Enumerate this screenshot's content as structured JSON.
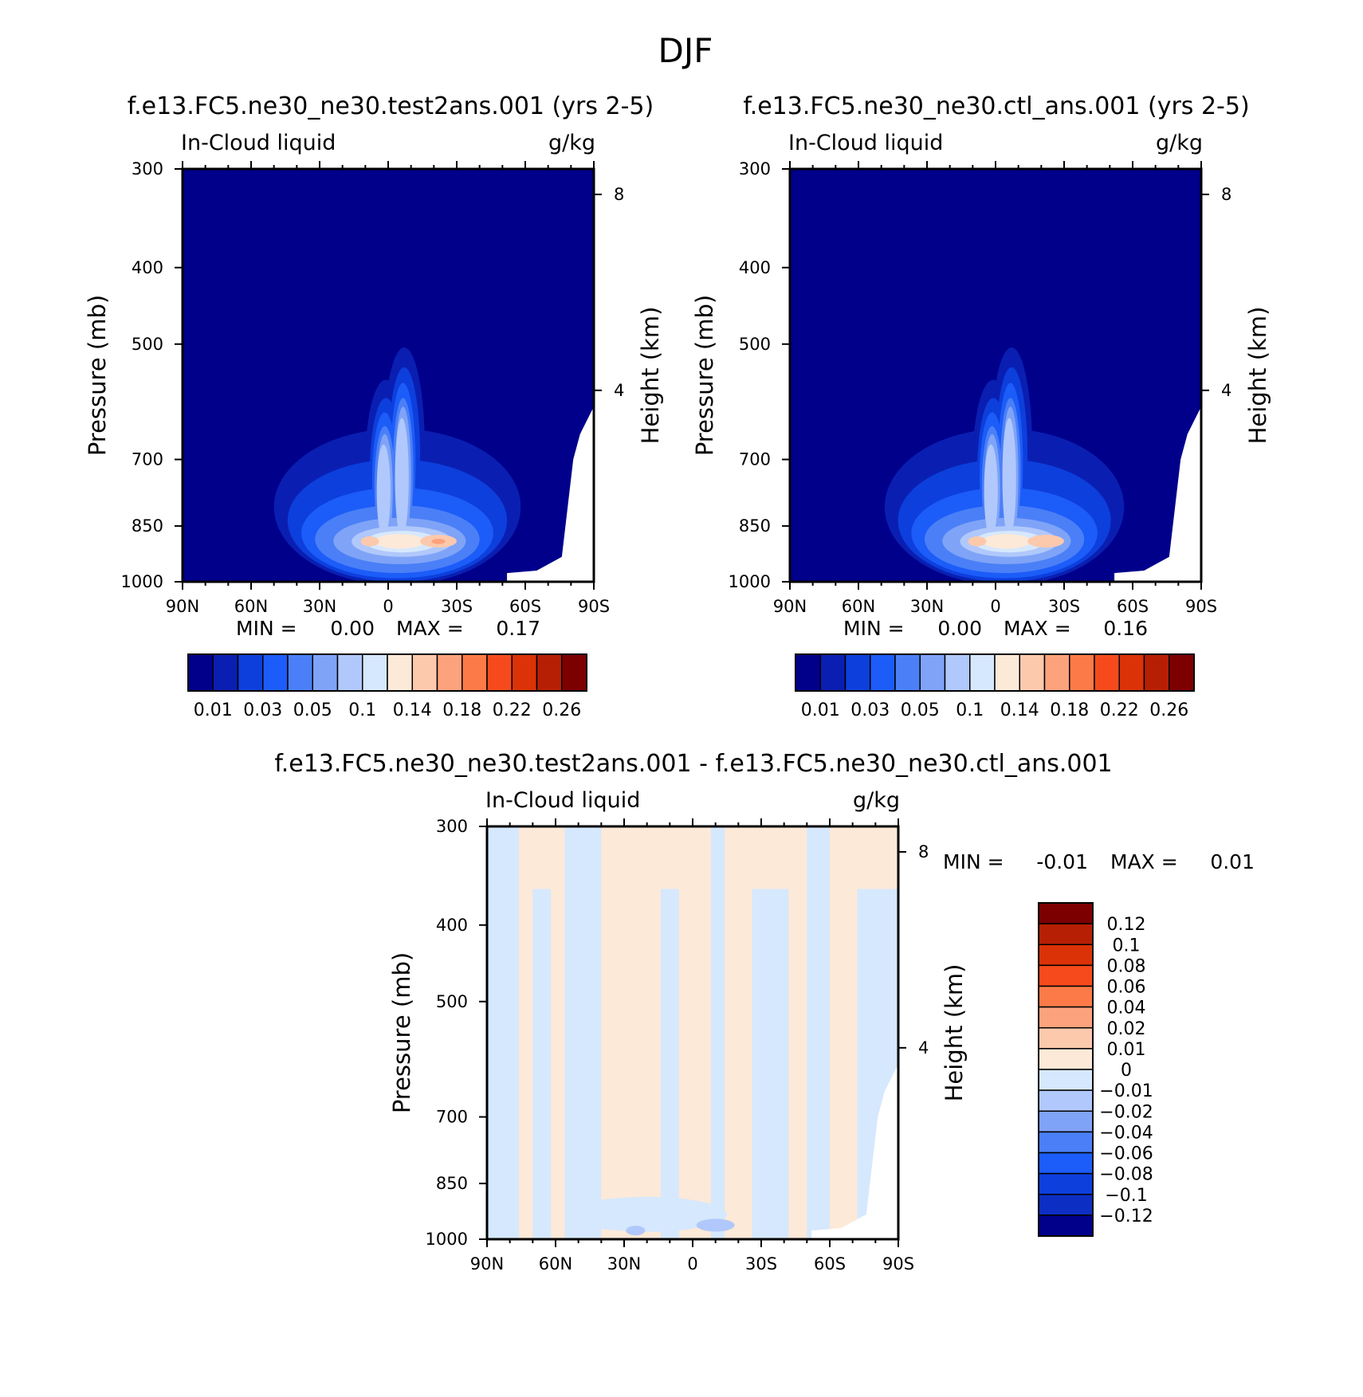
{
  "figure_title": "DJF",
  "colors": {
    "abs_palette": [
      "#00008b",
      "#0a1fb2",
      "#0d3fdc",
      "#1c5cf8",
      "#4a7ff7",
      "#7fa3f7",
      "#b0c8fb",
      "#d6e8fd",
      "#fde9d7",
      "#fcc9ad",
      "#fca27c",
      "#fc7a48",
      "#f64a1c",
      "#db3208",
      "#b71f04",
      "#7d0000"
    ],
    "diff_palette": [
      "#00008b",
      "#0d2ec2",
      "#0d3fdc",
      "#1c5cf8",
      "#4a7ff7",
      "#7fa3f7",
      "#b0c8fb",
      "#d6e8fd",
      "#fde9d7",
      "#fcc9ad",
      "#fca27c",
      "#fc7a48",
      "#f64a1c",
      "#db3208",
      "#b71f04",
      "#7d0000"
    ]
  },
  "chart_data": [
    {
      "type": "heatmap",
      "title": "f.e13.FC5.ne30_ne30.test2ans.001 (yrs 2-5)",
      "left_string": "In-Cloud liquid",
      "right_string": "g/kg",
      "xlabel": "",
      "ylabel": "Pressure (mb)",
      "ylabel_right": "Height (km)",
      "x_ticks": [
        "90N",
        "60N",
        "30N",
        "0",
        "30S",
        "60S",
        "90S"
      ],
      "y_ticks": [
        "300",
        "400",
        "500",
        "700",
        "850",
        "1000"
      ],
      "y_right_ticks": [
        "8",
        "4"
      ],
      "xlim": [
        90,
        -90
      ],
      "ylim": [
        1000,
        300
      ],
      "yscale": "log",
      "stats": {
        "min_label": "MIN =",
        "min_value": "0.00",
        "max_label": "MAX =",
        "max_value": "0.17"
      },
      "min": 0.0,
      "max": 0.17,
      "levels": [
        0.01,
        0.02,
        0.03,
        0.04,
        0.05,
        0.07,
        0.1,
        0.12,
        0.14,
        0.16,
        0.18,
        0.2,
        0.22,
        0.24,
        0.26
      ],
      "colorbar_labels": [
        "0.01",
        "0.03",
        "0.05",
        "0.1",
        "0.14",
        "0.18",
        "0.22",
        "0.26"
      ]
    },
    {
      "type": "heatmap",
      "title": "f.e13.FC5.ne30_ne30.ctl_ans.001 (yrs 2-5)",
      "left_string": "In-Cloud liquid",
      "right_string": "g/kg",
      "xlabel": "",
      "ylabel": "Pressure (mb)",
      "ylabel_right": "Height (km)",
      "x_ticks": [
        "90N",
        "60N",
        "30N",
        "0",
        "30S",
        "60S",
        "90S"
      ],
      "y_ticks": [
        "300",
        "400",
        "500",
        "700",
        "850",
        "1000"
      ],
      "y_right_ticks": [
        "8",
        "4"
      ],
      "xlim": [
        90,
        -90
      ],
      "ylim": [
        1000,
        300
      ],
      "yscale": "log",
      "stats": {
        "min_label": "MIN =",
        "min_value": "0.00",
        "max_label": "MAX =",
        "max_value": "0.16"
      },
      "min": 0.0,
      "max": 0.16,
      "levels": [
        0.01,
        0.02,
        0.03,
        0.04,
        0.05,
        0.07,
        0.1,
        0.12,
        0.14,
        0.16,
        0.18,
        0.2,
        0.22,
        0.24,
        0.26
      ],
      "colorbar_labels": [
        "0.01",
        "0.03",
        "0.05",
        "0.1",
        "0.14",
        "0.18",
        "0.22",
        "0.26"
      ]
    },
    {
      "type": "heatmap",
      "title": "f.e13.FC5.ne30_ne30.test2ans.001 - f.e13.FC5.ne30_ne30.ctl_ans.001",
      "left_string": "In-Cloud liquid",
      "right_string": "g/kg",
      "xlabel": "",
      "ylabel": "Pressure (mb)",
      "ylabel_right": "Height (km)",
      "x_ticks": [
        "90N",
        "60N",
        "30N",
        "0",
        "30S",
        "60S",
        "90S"
      ],
      "y_ticks": [
        "300",
        "400",
        "500",
        "700",
        "850",
        "1000"
      ],
      "y_right_ticks": [
        "8",
        "4"
      ],
      "xlim": [
        90,
        -90
      ],
      "ylim": [
        1000,
        300
      ],
      "yscale": "log",
      "stats": {
        "min_label": "MIN =",
        "min_value": "-0.01",
        "max_label": "MAX =",
        "max_value": "0.01"
      },
      "min": -0.01,
      "max": 0.01,
      "levels": [
        -0.12,
        -0.1,
        -0.08,
        -0.06,
        -0.04,
        -0.02,
        -0.01,
        0,
        0.01,
        0.02,
        0.04,
        0.06,
        0.08,
        0.1,
        0.12
      ],
      "colorbar_labels": [
        "0.12",
        "0.1",
        "0.08",
        "0.06",
        "0.04",
        "0.02",
        "0.01",
        "0",
        "-0.01",
        "-0.02",
        "-0.04",
        "-0.06",
        "-0.08",
        "-0.1",
        "-0.12"
      ]
    }
  ]
}
